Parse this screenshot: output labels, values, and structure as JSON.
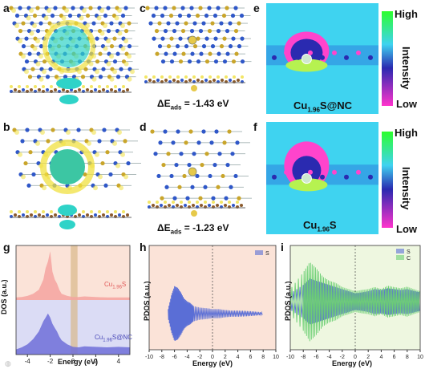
{
  "panels": {
    "a": {
      "label": "a"
    },
    "b": {
      "label": "b"
    },
    "c": {
      "label": "c",
      "eads_text": "ΔE",
      "eads_sub": "ads",
      "eads_value": " = -1.43 eV"
    },
    "d": {
      "label": "d",
      "eads_text": "ΔE",
      "eads_sub": "ads",
      "eads_value": " = -1.23 eV"
    },
    "e": {
      "label": "e",
      "caption_main": "Cu",
      "caption_sub": "1.96",
      "caption_tail": "S@NC"
    },
    "f": {
      "label": "f",
      "caption_main": "Cu",
      "caption_sub": "1.96",
      "caption_tail": "S"
    },
    "g": {
      "label": "g"
    },
    "h": {
      "label": "h"
    },
    "i": {
      "label": "i"
    }
  },
  "colorbar": {
    "high": "High",
    "low": "Low",
    "title": "Intensity"
  },
  "colors": {
    "cu_atom": "#e6c94a",
    "s_atom": "#c9a52a",
    "n_atom": "#2f57c8",
    "c_atom": "#8b5a2b",
    "charge_yellow": "#f0e040",
    "charge_cyan": "#2fd3c8",
    "dos_top_fill": "#f4a3a0",
    "dos_bottom_fill": "#6f6fd8",
    "pdos_blue": "#5a6ed6",
    "pdos_green": "#6ccf73"
  },
  "chart_data": [
    {
      "type": "area",
      "panel": "g",
      "ylabel": "DOS (a.u.)",
      "xlabel": "Energy (eV)",
      "xlim": [
        -5,
        5
      ],
      "xticks": [
        -4,
        -2,
        0,
        2,
        4
      ],
      "series": [
        {
          "name": "Cu1.96S",
          "name_main": "Cu",
          "name_sub": "1.96",
          "name_tail": "S",
          "x": [
            -5,
            -4.5,
            -4,
            -3.5,
            -3,
            -2.6,
            -2.4,
            -2.2,
            -2,
            -1.8,
            -1.6,
            -1.4,
            -1.2,
            -1,
            -0.5,
            0,
            0.5,
            1,
            2,
            3,
            4,
            5
          ],
          "y": [
            0.05,
            0.06,
            0.08,
            0.12,
            0.2,
            0.4,
            0.62,
            0.75,
            0.95,
            0.55,
            0.4,
            0.32,
            0.2,
            0.12,
            0.08,
            0.06,
            0.06,
            0.07,
            0.06,
            0.05,
            0.05,
            0.05
          ]
        },
        {
          "name": "Cu1.96S@NC",
          "name_main": "Cu",
          "name_sub": "1.96",
          "name_tail": "S@NC",
          "x": [
            -5,
            -4.5,
            -4,
            -3.5,
            -3,
            -2.6,
            -2.4,
            -2.2,
            -2,
            -1.8,
            -1.6,
            -1.4,
            -1.2,
            -1,
            -0.5,
            0,
            0.5,
            1,
            2,
            3,
            4,
            5
          ],
          "y": [
            0.1,
            0.14,
            0.2,
            0.3,
            0.45,
            0.65,
            0.72,
            0.8,
            0.72,
            0.6,
            0.52,
            0.45,
            0.35,
            0.28,
            0.2,
            0.15,
            0.14,
            0.16,
            0.15,
            0.14,
            0.15,
            0.14
          ]
        }
      ],
      "fermi_band": [
        -0.2,
        0.4
      ]
    },
    {
      "type": "line",
      "panel": "h",
      "ylabel": "PDOS (a.u.)",
      "xlabel": "Energy (eV)",
      "xlim": [
        -10,
        10
      ],
      "xticks": [
        -10,
        -8,
        -6,
        -4,
        -2,
        0,
        2,
        4,
        6,
        8,
        10
      ],
      "legend": [
        "S"
      ],
      "series": [
        {
          "name": "S",
          "x": [
            -7,
            -6.5,
            -6,
            -5.5,
            -5,
            -4.5,
            -4,
            -3.5,
            -3,
            -2,
            -1,
            0,
            1,
            2,
            3,
            4,
            5,
            6,
            7,
            8
          ],
          "y": [
            0.15,
            0.6,
            0.9,
            0.85,
            0.7,
            0.5,
            0.4,
            0.35,
            0.25,
            0.2,
            0.18,
            0.15,
            0.15,
            0.12,
            0.1,
            0.1,
            0.09,
            0.08,
            0.06,
            0.04
          ]
        }
      ]
    },
    {
      "type": "line",
      "panel": "i",
      "ylabel": "PDOS (a.u.)",
      "xlabel": "Energy (eV)",
      "xlim": [
        -10,
        10
      ],
      "xticks": [
        -10,
        -8,
        -6,
        -4,
        -2,
        0,
        2,
        4,
        6,
        8,
        10
      ],
      "legend": [
        "S",
        "C"
      ],
      "series": [
        {
          "name": "S",
          "x": [
            -10,
            -8,
            -7,
            -6,
            -5,
            -4,
            -3,
            -2,
            -1,
            0,
            1,
            2,
            3,
            4,
            5,
            6,
            7,
            8,
            9,
            10
          ],
          "y": [
            0.2,
            0.4,
            0.55,
            0.5,
            0.45,
            0.4,
            0.35,
            0.3,
            0.25,
            0.2,
            0.22,
            0.25,
            0.3,
            0.28,
            0.32,
            0.3,
            0.28,
            0.3,
            0.26,
            0.22
          ]
        },
        {
          "name": "C",
          "x": [
            -10,
            -8,
            -7,
            -6,
            -5,
            -4,
            -3,
            -2,
            -1,
            0,
            1,
            2,
            3,
            4,
            5,
            6,
            7,
            8,
            9,
            10
          ],
          "y": [
            0.3,
            0.7,
            0.95,
            0.8,
            0.6,
            0.5,
            0.45,
            0.35,
            0.3,
            0.25,
            0.28,
            0.3,
            0.35,
            0.3,
            0.38,
            0.35,
            0.32,
            0.36,
            0.3,
            0.25
          ]
        }
      ]
    }
  ]
}
